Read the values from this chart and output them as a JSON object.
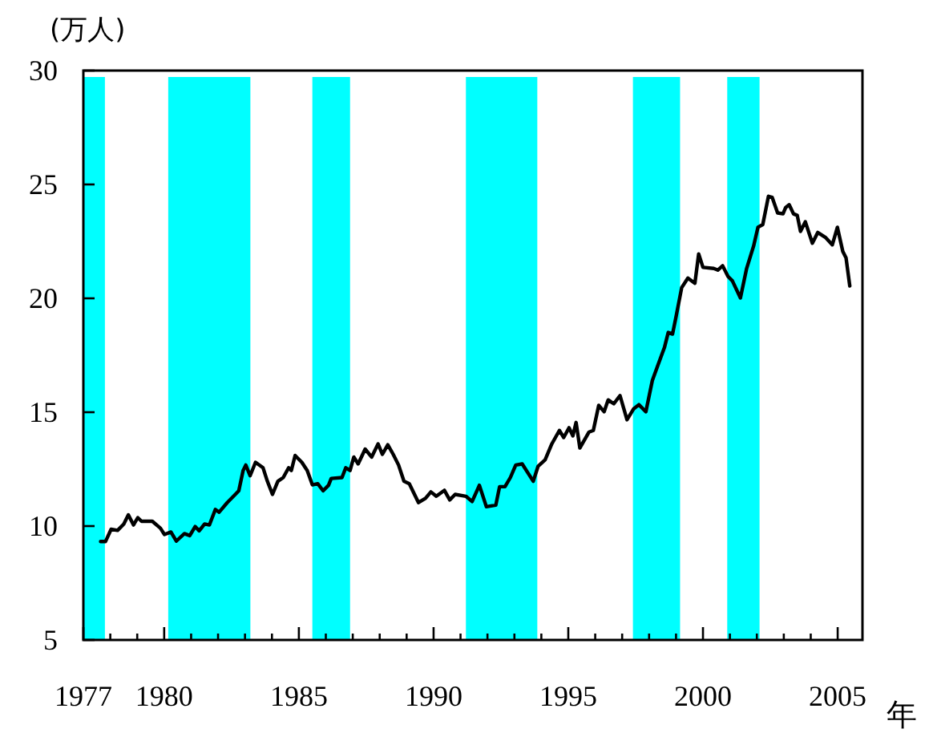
{
  "chart_data": {
    "type": "line",
    "ylabel": "(万人)",
    "xlabel": "年",
    "x": [
      1977.64,
      1977.82,
      1978.03,
      1978.27,
      1978.5,
      1978.67,
      1978.86,
      1979.02,
      1979.16,
      1979.56,
      1979.86,
      1980.01,
      1980.25,
      1980.45,
      1980.75,
      1980.95,
      1981.15,
      1981.3,
      1981.5,
      1981.68,
      1981.9,
      1982.04,
      1982.34,
      1982.64,
      1982.77,
      1982.93,
      1983.03,
      1983.19,
      1983.39,
      1983.67,
      1983.83,
      1984.02,
      1984.22,
      1984.42,
      1984.62,
      1984.72,
      1984.86,
      1985.11,
      1985.31,
      1985.5,
      1985.7,
      1985.9,
      1986.1,
      1986.2,
      1986.6,
      1986.74,
      1986.9,
      1987.04,
      1987.2,
      1987.46,
      1987.7,
      1987.94,
      1988.1,
      1988.3,
      1988.5,
      1988.7,
      1988.9,
      1989.1,
      1989.44,
      1989.7,
      1989.9,
      1990.1,
      1990.4,
      1990.6,
      1990.8,
      1991.2,
      1991.43,
      1991.7,
      1991.96,
      1992.31,
      1992.45,
      1992.65,
      1992.85,
      1993.05,
      1993.29,
      1993.51,
      1993.7,
      1993.88,
      1994.14,
      1994.39,
      1994.67,
      1994.83,
      1995.03,
      1995.17,
      1995.29,
      1995.43,
      1995.77,
      1995.93,
      1996.13,
      1996.33,
      1996.48,
      1996.69,
      1996.92,
      1997.18,
      1997.42,
      1997.62,
      1997.88,
      1998.12,
      1998.35,
      1998.57,
      1998.71,
      1998.87,
      1999.01,
      1999.21,
      1999.44,
      1999.7,
      1999.84,
      2000.0,
      2000.4,
      2000.55,
      2000.73,
      2000.93,
      2001.09,
      2001.39,
      2001.62,
      2001.88,
      2002.04,
      2002.22,
      2002.43,
      2002.57,
      2002.77,
      2002.97,
      2003.07,
      2003.2,
      2003.36,
      2003.5,
      2003.62,
      2003.8,
      2004.06,
      2004.26,
      2004.56,
      2004.8,
      2004.99,
      2005.19,
      2005.31,
      2005.45
    ],
    "series": [
      {
        "color": "#000000",
        "values": [
          9.32,
          9.32,
          9.86,
          9.81,
          10.09,
          10.49,
          10.05,
          10.37,
          10.21,
          10.21,
          9.91,
          9.63,
          9.74,
          9.34,
          9.67,
          9.58,
          9.98,
          9.79,
          10.09,
          10.05,
          10.73,
          10.61,
          11.03,
          11.39,
          11.55,
          12.44,
          12.68,
          12.21,
          12.8,
          12.56,
          11.97,
          11.39,
          11.97,
          12.13,
          12.56,
          12.44,
          13.1,
          12.8,
          12.44,
          11.81,
          11.86,
          11.55,
          11.79,
          12.09,
          12.13,
          12.56,
          12.44,
          13.03,
          12.73,
          13.38,
          13.03,
          13.61,
          13.15,
          13.57,
          13.15,
          12.68,
          11.97,
          11.86,
          11.03,
          11.22,
          11.5,
          11.31,
          11.57,
          11.15,
          11.39,
          11.31,
          11.08,
          11.79,
          10.85,
          10.92,
          11.73,
          11.73,
          12.13,
          12.68,
          12.73,
          12.32,
          11.97,
          12.63,
          12.91,
          13.61,
          14.2,
          13.89,
          14.32,
          13.96,
          14.55,
          13.43,
          14.13,
          14.2,
          15.3,
          15.02,
          15.54,
          15.37,
          15.73,
          14.67,
          15.14,
          15.33,
          15.02,
          16.39,
          17.14,
          17.84,
          18.5,
          18.43,
          19.25,
          20.47,
          20.89,
          20.66,
          21.95,
          21.36,
          21.31,
          21.24,
          21.43,
          20.96,
          20.77,
          20.02,
          21.31,
          22.3,
          23.12,
          23.24,
          24.48,
          24.43,
          23.75,
          23.71,
          23.99,
          24.11,
          23.71,
          23.64,
          22.94,
          23.36,
          22.42,
          22.89,
          22.66,
          22.35,
          23.12,
          22.06,
          21.78,
          20.54
        ]
      }
    ],
    "xlim": [
      1977,
      2005.92
    ],
    "ylim": [
      5,
      30
    ],
    "xticks": [
      1977,
      {
        "value": 1978,
        "label": null
      },
      {
        "value": 1979,
        "label": null
      },
      1980,
      {
        "value": 1981,
        "label": null
      },
      {
        "value": 1982,
        "label": null
      },
      {
        "value": 1983,
        "label": null
      },
      {
        "value": 1984,
        "label": null
      },
      1985,
      {
        "value": 1986,
        "label": null
      },
      {
        "value": 1987,
        "label": null
      },
      {
        "value": 1988,
        "label": null
      },
      {
        "value": 1989,
        "label": null
      },
      1990,
      {
        "value": 1991,
        "label": null
      },
      {
        "value": 1992,
        "label": null
      },
      {
        "value": 1993,
        "label": null
      },
      {
        "value": 1994,
        "label": null
      },
      1995,
      {
        "value": 1996,
        "label": null
      },
      {
        "value": 1997,
        "label": null
      },
      {
        "value": 1998,
        "label": null
      },
      {
        "value": 1999,
        "label": null
      },
      2000,
      {
        "value": 2001,
        "label": null
      },
      {
        "value": 2002,
        "label": null
      },
      {
        "value": 2003,
        "label": null
      },
      {
        "value": 2004,
        "label": null
      },
      2005
    ],
    "yticks": [
      5,
      10,
      15,
      20,
      25,
      30
    ],
    "bands": [
      {
        "axis": "x",
        "from": 1977.0,
        "to": 1977.8,
        "color": "#00ffff"
      },
      {
        "axis": "x",
        "from": 1980.15,
        "to": 1983.2,
        "color": "#00ffff"
      },
      {
        "axis": "x",
        "from": 1985.5,
        "to": 1986.9,
        "color": "#00ffff"
      },
      {
        "axis": "x",
        "from": 1991.2,
        "to": 1993.85,
        "color": "#00ffff"
      },
      {
        "axis": "x",
        "from": 1997.4,
        "to": 1999.15,
        "color": "#00ffff"
      },
      {
        "axis": "x",
        "from": 2000.9,
        "to": 2002.1,
        "color": "#00ffff"
      }
    ],
    "grid": false,
    "line_style": "solid",
    "marker": "none"
  }
}
